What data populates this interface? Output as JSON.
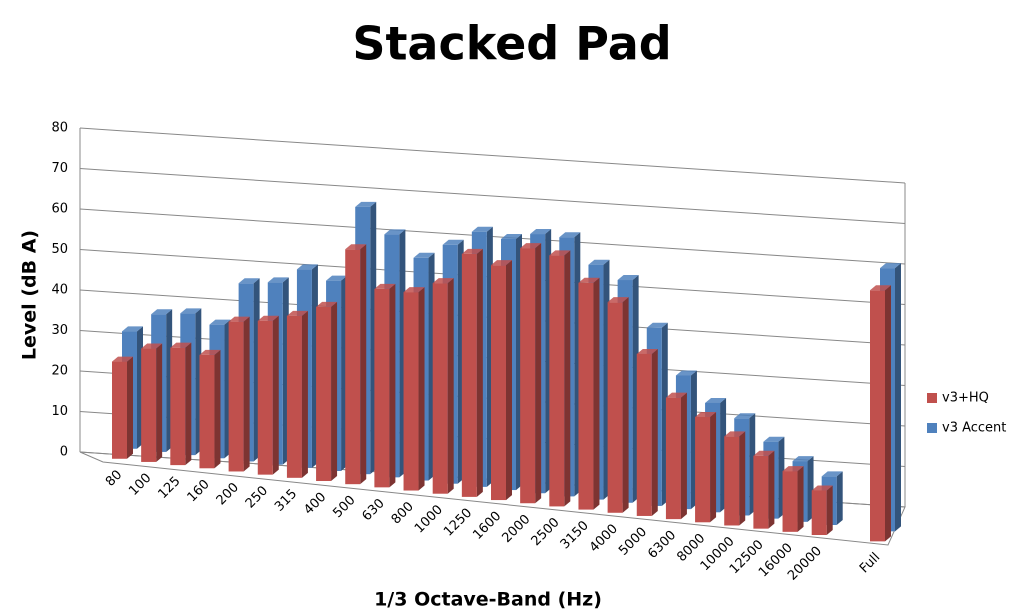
{
  "chart_data": {
    "type": "bar3d",
    "title": "Stacked Pad",
    "x_label": "1/3 Octave-Band (Hz)",
    "y_label": "Level (dB A)",
    "categories": [
      "80",
      "100",
      "125",
      "160",
      "200",
      "250",
      "315",
      "400",
      "500",
      "630",
      "800",
      "1000",
      "1250",
      "1600",
      "2000",
      "2500",
      "3150",
      "4000",
      "5000",
      "6300",
      "8000",
      "10000",
      "12500",
      "16000",
      "20000",
      null,
      "Full"
    ],
    "series": [
      {
        "name": "v3+HQ",
        "color": "#c0504d",
        "values": [
          24,
          28,
          29,
          28,
          37,
          38,
          40,
          43,
          58,
          49,
          49,
          52,
          60,
          58,
          63,
          62,
          56,
          52,
          40,
          30,
          26,
          22,
          18,
          15,
          11,
          null,
          62
        ]
      },
      {
        "name": "v3 Accent",
        "color": "#4f81bd",
        "values": [
          29,
          34,
          35,
          33,
          44,
          45,
          49,
          47,
          66,
          60,
          55,
          59,
          63,
          62,
          64,
          64,
          58,
          55,
          44,
          33,
          27,
          24,
          19,
          15,
          12,
          null,
          65
        ]
      }
    ],
    "ylim": [
      0,
      80
    ],
    "yticks": [
      0,
      10,
      20,
      30,
      40,
      50,
      60,
      70,
      80
    ],
    "grid": true,
    "legend": "right"
  }
}
